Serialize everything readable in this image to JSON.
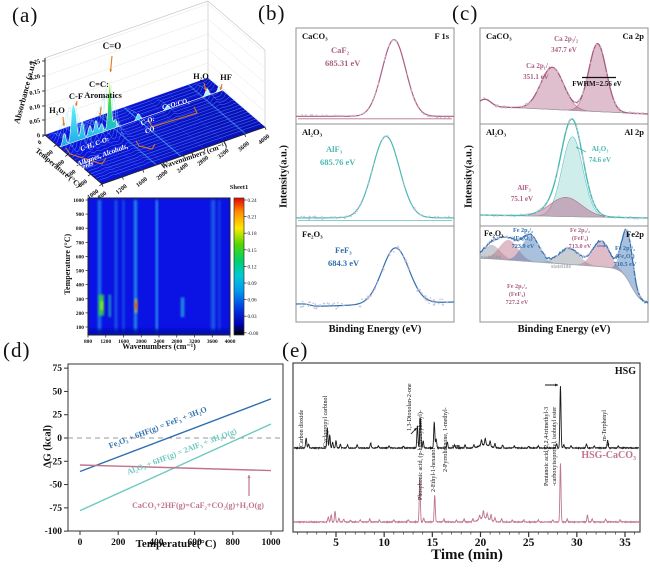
{
  "panel_labels": {
    "a": "(a)",
    "b": "(b)",
    "c": "(c)",
    "d": "(d)",
    "e": "(e)"
  },
  "colors": {
    "mauve": "#aa5f84",
    "teal": "#4cb8b2",
    "blue": "#2f6fae",
    "pink": "#c0758c",
    "orange": "#e87818",
    "heat_bg": "#0a12e4"
  },
  "chart_data": [
    {
      "id": "ftir-3d",
      "type": "area",
      "ylabel": "Absorbance (a.u.)",
      "yticks": [
        "0.25",
        "0.20",
        "0.15",
        "0.10",
        "0.05",
        "0"
      ],
      "temp_label": "Temperature (°C)",
      "temp_ticks": [
        "0",
        "200",
        "400",
        "600",
        "800",
        "1000"
      ],
      "xlabel": "Wavenumbers (cm⁻¹)",
      "xticks": [
        "800",
        "1200",
        "1600",
        "2000",
        "2400",
        "2800",
        "3200",
        "3600",
        "4000"
      ],
      "peaks_wn_height": [
        [
          900,
          12
        ],
        [
          1060,
          34
        ],
        [
          1120,
          26
        ],
        [
          1250,
          18
        ],
        [
          1400,
          11
        ],
        [
          1520,
          14
        ],
        [
          1630,
          9
        ],
        [
          1790,
          48
        ],
        [
          1900,
          8
        ],
        [
          2350,
          6
        ],
        [
          2920,
          4
        ],
        [
          3700,
          7
        ],
        [
          3950,
          7
        ]
      ],
      "annotations": {
        "co": "C=O",
        "cc": "C=C:",
        "aromatics": "Aromatics",
        "cf": "C-F",
        "h2o_left": "H₂O",
        "h2o_right": "H₂O",
        "hf": "HF",
        "chco": "C-H, C-O:",
        "alkanes": "Alkanes, Alcohols,",
        "lipids": "Lipids",
        "co_r": "C-O:",
        "co_r2": "CO",
        "co2": "C=O:CO₂"
      }
    },
    {
      "id": "ftir-heatmap",
      "type": "heatmap",
      "colorbar_title": "Sheet1",
      "ylabel": "Temperature (°C)",
      "yticks": [
        "1000",
        "900",
        "800",
        "700",
        "600",
        "500",
        "400",
        "300",
        "200",
        "100"
      ],
      "xlabel": "Wavenumbers (cm⁻¹)",
      "xticks": [
        "800",
        "1200",
        "1600",
        "2000",
        "2400",
        "2800",
        "3200",
        "3600",
        "4000"
      ],
      "colorbar_ticks": [
        "0.24",
        "0.21",
        "0.18",
        "0.15",
        "0.12",
        "0.09",
        "0.06",
        "0.03",
        "-0.00"
      ],
      "streaks": [
        {
          "wn": 1060,
          "w": 80,
          "t1": 60,
          "t2": 1000,
          "color": "#2090e8",
          "op": 0.75
        },
        {
          "wn": 1100,
          "w": 120,
          "t1": 180,
          "t2": 330,
          "color": "#34d244",
          "op": 0.9
        },
        {
          "wn": 1110,
          "w": 50,
          "t1": 220,
          "t2": 285,
          "color": "#c8f018",
          "op": 0.85
        },
        {
          "wn": 1290,
          "w": 50,
          "t1": 170,
          "t2": 330,
          "color": "#28c8a8",
          "op": 0.8
        },
        {
          "wn": 1430,
          "w": 60,
          "t1": 60,
          "t2": 1000,
          "color": "#2080e0",
          "op": 0.65
        },
        {
          "wn": 1600,
          "w": 45,
          "t1": 60,
          "t2": 1000,
          "color": "#2090e8",
          "op": 0.55
        },
        {
          "wn": 1870,
          "w": 70,
          "t1": 60,
          "t2": 1000,
          "color": "#28a8e8",
          "op": 0.8
        },
        {
          "wn": 1880,
          "w": 45,
          "t1": 200,
          "t2": 300,
          "color": "#f0c818",
          "op": 0.9
        },
        {
          "wn": 1885,
          "w": 20,
          "t1": 225,
          "t2": 278,
          "color": "#e84018",
          "op": 0.95
        },
        {
          "wn": 2350,
          "w": 30,
          "t1": 60,
          "t2": 1000,
          "color": "#30b8f0",
          "op": 0.9
        },
        {
          "wn": 2930,
          "w": 80,
          "t1": 170,
          "t2": 310,
          "color": "#28acdc",
          "op": 0.8
        },
        {
          "wn": 3620,
          "w": 100,
          "t1": 60,
          "t2": 1000,
          "color": "#2a8ce0",
          "op": 0.55
        },
        {
          "wn": 3760,
          "w": 30,
          "t1": 60,
          "t2": 1000,
          "color": "#2a8ce0",
          "op": 0.45
        }
      ]
    },
    {
      "id": "xps-f1s",
      "type": "line",
      "region_label": "F 1s",
      "ylabel": "Intensity(a.u.)",
      "xlabel": "Binding Energy (eV)",
      "subpanels": [
        {
          "sample": "CaCO₃",
          "species": "CaF₂",
          "energy": "685.31 eV",
          "center": 0.62,
          "sigma": 0.075,
          "amp": 1.0
        },
        {
          "sample": "Al₂O₃",
          "species": "AlF₃",
          "energy": "685.76 eV",
          "center": 0.57,
          "sigma": 0.085,
          "amp": 1.0
        },
        {
          "sample": "Fe₂O₃",
          "species": "FeF₃",
          "energy": "684.3 eV",
          "center": 0.63,
          "sigma": 0.085,
          "amp": 0.62
        }
      ]
    },
    {
      "id": "xps-cation",
      "type": "line",
      "ylabel": "Intensity(a.u.)",
      "xlabel": "Binding Energy (eV)",
      "subpanels": [
        {
          "sample": "CaCO₃",
          "region": "Ca 2p",
          "labels": {
            "p1a": "Ca 2p₃/₂",
            "p1b": "347.7 eV",
            "p2a": "Ca 2p₁/₂",
            "p2b": "351.1 eV",
            "fwhm": "FWHM=2.56 eV"
          },
          "components": [
            {
              "name": "Ca 2p3/2",
              "center": 0.7,
              "sigma": 0.052,
              "amp": 1.0
            },
            {
              "name": "Ca 2p1/2",
              "center": 0.43,
              "sigma": 0.068,
              "amp": 0.62
            }
          ]
        },
        {
          "sample": "Al₂O₃",
          "region": "Al 2p",
          "labels": {
            "main_a": "Al₂O₃",
            "main_b": "74.6 eV",
            "sec_a": "AlF₃",
            "sec_b": "75.1 eV"
          },
          "components": [
            {
              "name": "Al2O3",
              "center": 0.55,
              "sigma": 0.062,
              "amp": 1.0
            },
            {
              "name": "AlF3",
              "center": 0.51,
              "sigma": 0.095,
              "amp": 0.24
            }
          ]
        },
        {
          "sample": "Fe₂O₃",
          "region": "Fe2p",
          "labels": {
            "b1a": "Fe 2p₁/₂",
            "b1b": "(Fe₂O₃)",
            "b1c": "723.9 eV",
            "p1a": "Fe 2p₃/₂",
            "p1b": "(FeF₃)",
            "p1c": "713.0 eV",
            "b2a": "Fe 2p₃/₂",
            "b2b": "(Fe₂O₃)",
            "b2c": "710.5 eV",
            "p2a": "Fe 2p₁/₂",
            "p2b": "(FeF₃)",
            "p2c": "727.2 eV",
            "sat1": "statellite",
            "sat2": "statellite"
          },
          "components": [
            {
              "name": "satellite",
              "center": 0.07,
              "sigma": 0.05,
              "amp": 0.29
            },
            {
              "name": "FeF3 2p1/2",
              "center": 0.17,
              "sigma": 0.055,
              "amp": 0.42
            },
            {
              "name": "Fe2O3 2p1/2",
              "center": 0.3,
              "sigma": 0.05,
              "amp": 0.54
            },
            {
              "name": "satellite",
              "center": 0.53,
              "sigma": 0.06,
              "amp": 0.33
            },
            {
              "name": "FeF3 2p3/2",
              "center": 0.72,
              "sigma": 0.05,
              "amp": 0.54
            },
            {
              "name": "Fe2O3 2p3/2",
              "center": 0.875,
              "sigma": 0.032,
              "amp": 1.0
            }
          ]
        }
      ]
    },
    {
      "id": "gibbs",
      "type": "line",
      "ylabel": "ΔG (kcal)",
      "xlabel": "Temperature(°C)",
      "yticks": [
        "75",
        "50",
        "25",
        "0",
        "-25",
        "-50",
        "-75",
        "-100"
      ],
      "xticks": [
        "0",
        "200",
        "400",
        "600",
        "800",
        "1000"
      ],
      "ylim": [
        -100,
        75
      ],
      "xlim": [
        0,
        1000
      ],
      "series": [
        {
          "name": "Fe₂O₃ + 6HF(g) = FeF₃ + 3H₂O",
          "color": "#2f6fae",
          "points": [
            [
              0,
              -36
            ],
            [
              1000,
              42
            ]
          ]
        },
        {
          "name": "Al₂O₃ + 6HF(g) = 2AlF₃ + 3H₂O(g)",
          "color": "#6cc8c0",
          "points": [
            [
              0,
              -78
            ],
            [
              1000,
              15
            ]
          ]
        },
        {
          "name": "CaCO₃+2HF(g)=CaF₂+CO₂(g)+H₂O(g)",
          "color": "#c0758c",
          "points": [
            [
              0,
              -29
            ],
            [
              1000,
              -35
            ]
          ]
        }
      ]
    },
    {
      "id": "gcms",
      "type": "line",
      "xlabel": "Time (min)",
      "xticks": [
        5,
        10,
        15,
        20,
        25,
        30,
        35
      ],
      "xlim": [
        0.6,
        36.5
      ],
      "series": [
        {
          "name": "HSG",
          "color": "#1a1a1a",
          "peaks": [
            [
              1.9,
              10
            ],
            [
              2.15,
              4
            ],
            [
              4.1,
              20
            ],
            [
              4.35,
              13
            ],
            [
              4.65,
              6
            ],
            [
              5.0,
              7
            ],
            [
              5.45,
              4
            ],
            [
              6.2,
              3
            ],
            [
              7.2,
              3
            ],
            [
              8.6,
              5
            ],
            [
              9.4,
              2
            ],
            [
              10.5,
              2
            ],
            [
              12.0,
              2
            ],
            [
              13.45,
              22
            ],
            [
              13.75,
              30
            ],
            [
              14.05,
              7
            ],
            [
              15.2,
              26
            ],
            [
              15.4,
              9
            ],
            [
              16.55,
              6
            ],
            [
              17.3,
              3
            ],
            [
              18.4,
              3
            ],
            [
              19.3,
              3
            ],
            [
              20.1,
              5
            ],
            [
              20.5,
              6
            ],
            [
              21.0,
              5
            ],
            [
              21.5,
              4
            ],
            [
              22.3,
              3
            ],
            [
              23.5,
              2
            ],
            [
              25.0,
              2
            ],
            [
              26.0,
              2
            ],
            [
              27.9,
              4
            ],
            [
              28.3,
              62
            ],
            [
              28.65,
              3
            ],
            [
              29.4,
              2
            ],
            [
              31.0,
              4
            ],
            [
              31.8,
              2
            ],
            [
              33.2,
              8
            ],
            [
              34.3,
              2
            ]
          ]
        },
        {
          "name": "HSG-CaCO₃",
          "color": "#c0758c",
          "peaks": [
            [
              4.2,
              5
            ],
            [
              4.5,
              7
            ],
            [
              4.9,
              11
            ],
            [
              5.3,
              4
            ],
            [
              5.8,
              3
            ],
            [
              6.5,
              2
            ],
            [
              7.5,
              2
            ],
            [
              8.5,
              3
            ],
            [
              9.5,
              2
            ],
            [
              11.0,
              2
            ],
            [
              12.5,
              2
            ],
            [
              13.7,
              44
            ],
            [
              14.1,
              4
            ],
            [
              15.25,
              27
            ],
            [
              16.2,
              3
            ],
            [
              17.5,
              2
            ],
            [
              18.3,
              3
            ],
            [
              19.2,
              3
            ],
            [
              19.9,
              4
            ],
            [
              20.3,
              7
            ],
            [
              20.7,
              5
            ],
            [
              21.1,
              6
            ],
            [
              21.5,
              4
            ],
            [
              22.2,
              3
            ],
            [
              23.3,
              2
            ],
            [
              24.5,
              2
            ],
            [
              26.0,
              2
            ],
            [
              27.5,
              2
            ],
            [
              28.3,
              59
            ],
            [
              29.0,
              3
            ],
            [
              31.1,
              7
            ],
            [
              31.6,
              3
            ],
            [
              33.0,
              3
            ],
            [
              34.5,
              2
            ]
          ]
        }
      ],
      "compounds": [
        {
          "label": "Carbon dioxide",
          "t": 1.9
        },
        {
          "label": "Cyclopropyl carbinol",
          "t": 4.4
        },
        {
          "label": "1,3-Dioxolan-2-one",
          "t": 13.1
        },
        {
          "label": "Phosphonic acid, (p-hydroxyphenyl)-",
          "t": 14.2
        },
        {
          "label": "2-Ethyl-1-hexanol",
          "t": 15.5
        },
        {
          "label": "2-Pyrrolidinone, 1-methyl-",
          "t": 16.8
        },
        {
          "label": "Pentanoic acid, 2,2,4-trimethyl-3",
          "t": 27.3
        },
        {
          "label": "-carboxyisopropyl, isobutyl ester",
          "t": 28.1
        },
        {
          "label": "m-Terphenyl",
          "t": 33.3
        }
      ]
    }
  ]
}
